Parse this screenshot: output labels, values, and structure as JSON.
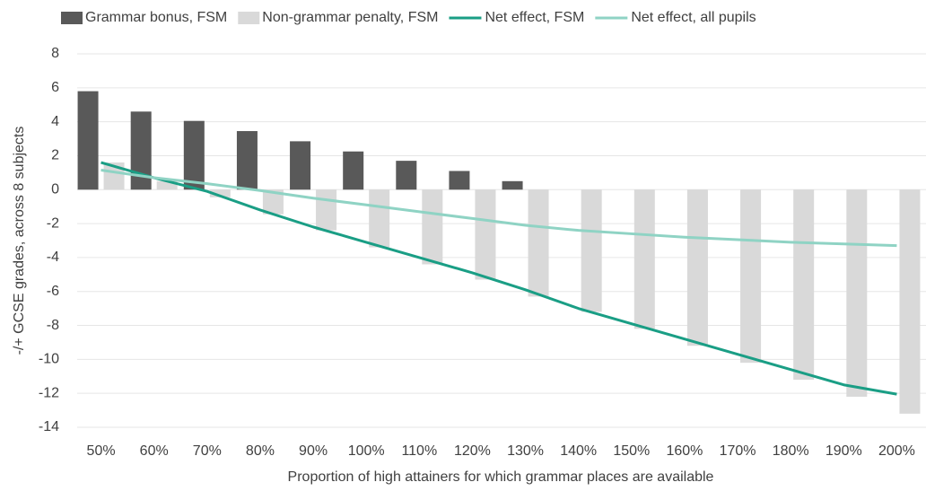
{
  "chart_data": {
    "type": "bar",
    "y_axis_label": "-/+ GCSE grades, across 8 subjects",
    "x_axis_label": "Proportion of high attainers for which grammar places are available",
    "categories": [
      "50%",
      "60%",
      "70%",
      "80%",
      "90%",
      "100%",
      "110%",
      "120%",
      "130%",
      "140%",
      "150%",
      "160%",
      "170%",
      "180%",
      "190%",
      "200%"
    ],
    "series": [
      {
        "name": "Grammar bonus, FSM",
        "type": "bar",
        "color": "#595959",
        "values": [
          5.8,
          4.6,
          4.05,
          3.45,
          2.85,
          2.25,
          1.7,
          1.1,
          0.5,
          0,
          0,
          0,
          0,
          0,
          0,
          0
        ]
      },
      {
        "name": "Non-grammar penalty, FSM",
        "type": "bar",
        "color": "#d9d9d9",
        "values": [
          1.6,
          0.5,
          -0.45,
          -1.45,
          -2.4,
          -3.4,
          -4.4,
          -5.3,
          -6.3,
          -7.2,
          -8.2,
          -9.2,
          -10.2,
          -11.2,
          -12.2,
          -13.2
        ]
      },
      {
        "name": "Net effect, FSM",
        "type": "line",
        "color": "#1a9e85",
        "values": [
          1.6,
          0.7,
          -0.1,
          -1.2,
          -2.2,
          -3.1,
          -4.0,
          -4.9,
          -5.9,
          -7.0,
          -7.9,
          -8.8,
          -9.7,
          -10.6,
          -11.5,
          -12.05
        ]
      },
      {
        "name": "Net effect, all pupils",
        "type": "line",
        "color": "#8fd3c4",
        "values": [
          1.15,
          0.7,
          0.35,
          -0.05,
          -0.5,
          -0.9,
          -1.3,
          -1.7,
          -2.1,
          -2.4,
          -2.6,
          -2.8,
          -2.95,
          -3.1,
          -3.2,
          -3.3
        ]
      }
    ],
    "ylim": [
      -14,
      8
    ],
    "yticks": [
      -14,
      -12,
      -10,
      -8,
      -6,
      -4,
      -2,
      0,
      2,
      4,
      6,
      8
    ],
    "grid": true
  }
}
